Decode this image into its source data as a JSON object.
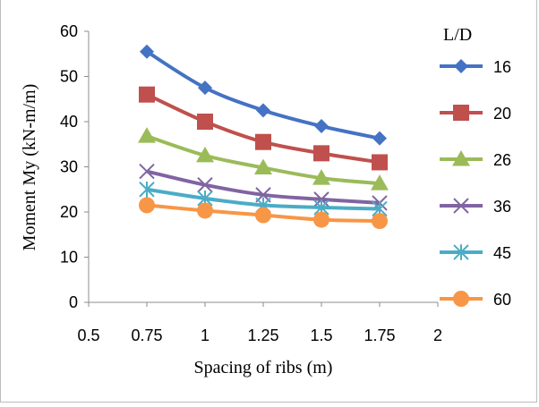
{
  "chart_data": {
    "type": "line",
    "title": "",
    "xlabel": "Spacing of ribs (m)",
    "ylabel": "Moment  My (kN-m/m)",
    "x": [
      0.75,
      1,
      1.25,
      1.5,
      1.75
    ],
    "xlim": [
      0.5,
      2
    ],
    "ylim": [
      0,
      60
    ],
    "x_ticks": [
      "0.5",
      "0.75",
      "1",
      "1.25",
      "1.5",
      "1.75",
      "2"
    ],
    "y_ticks": [
      "0",
      "10",
      "20",
      "30",
      "40",
      "50",
      "60"
    ],
    "grid": false,
    "legend_title": "L/D",
    "legend_position": "right",
    "series": [
      {
        "name": "16",
        "values": [
          55.5,
          47.5,
          42.5,
          39,
          36.3
        ],
        "color": "#4472C4",
        "marker": "diamond"
      },
      {
        "name": "20",
        "values": [
          46,
          40,
          35.5,
          33,
          31
        ],
        "color": "#C0504D",
        "marker": "square"
      },
      {
        "name": "26",
        "values": [
          36.8,
          32.5,
          29.8,
          27.5,
          26.3
        ],
        "color": "#9BBB59",
        "marker": "triangle"
      },
      {
        "name": "36",
        "values": [
          29,
          26,
          23.8,
          22.8,
          22
        ],
        "color": "#8064A2",
        "marker": "x"
      },
      {
        "name": "45",
        "values": [
          25,
          23,
          21.5,
          21,
          20.7
        ],
        "color": "#4BACC6",
        "marker": "star"
      },
      {
        "name": "60",
        "values": [
          21.5,
          20.3,
          19.3,
          18.3,
          18
        ],
        "color": "#F79646",
        "marker": "circle"
      }
    ]
  }
}
